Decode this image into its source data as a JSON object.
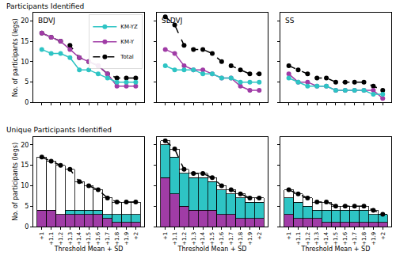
{
  "chart_data": [
    {
      "type": "line",
      "title": "Participants Identified",
      "subtitle": "BDVJ",
      "categories": [
        "+1",
        "+1.1",
        "+1.2",
        "+1.3",
        "+1.4",
        "+1.5",
        "+1.6",
        "+1.7",
        "+1.8",
        "+1.9",
        "+2"
      ],
      "series": [
        {
          "name": "Total",
          "color": "#000000",
          "marker": "circle",
          "line_style": "dashed",
          "values": [
            17,
            16,
            15,
            14,
            11,
            10,
            9,
            7,
            6,
            6,
            6
          ]
        },
        {
          "name": "KM-Y",
          "color": "#a03ca6",
          "marker": "circle",
          "line_style": "solid",
          "values": [
            17,
            16,
            15,
            13,
            11,
            10,
            9,
            7,
            4,
            4,
            4
          ]
        },
        {
          "name": "KM-YZ",
          "color": "#2ec4c4",
          "marker": "circle",
          "line_style": "solid",
          "values": [
            13,
            12,
            12,
            11,
            8,
            8,
            7,
            6,
            5,
            5,
            5
          ]
        }
      ],
      "ylabel": "No. of participants (legs)",
      "ylim": [
        0,
        22
      ],
      "yticks": [
        0,
        5,
        10,
        15,
        20
      ],
      "grid": false,
      "legend": "upper right",
      "tick_labels": "y"
    },
    {
      "type": "line",
      "subtitle": "SLDVJ",
      "categories": [
        "+1",
        "+1.1",
        "+1.2",
        "+1.3",
        "+1.4",
        "+1.5",
        "+1.6",
        "+1.7",
        "+1.8",
        "+1.9",
        "+2"
      ],
      "series": [
        {
          "name": "Total",
          "color": "#000000",
          "marker": "circle",
          "line_style": "dashed",
          "values": [
            21,
            19,
            14,
            13,
            13,
            12,
            10,
            9,
            8,
            7,
            7
          ]
        },
        {
          "name": "KM-Y",
          "color": "#a03ca6",
          "marker": "circle",
          "line_style": "solid",
          "values": [
            13,
            12,
            9,
            8,
            8,
            7,
            6,
            6,
            4,
            3,
            3
          ]
        },
        {
          "name": "KM-YZ",
          "color": "#2ec4c4",
          "marker": "circle",
          "line_style": "solid",
          "values": [
            9,
            8,
            8,
            8,
            7,
            7,
            6,
            6,
            5,
            5,
            5
          ]
        }
      ],
      "ylim": [
        0,
        22
      ],
      "yticks": [
        0,
        5,
        10,
        15,
        20
      ],
      "grid": false,
      "tick_labels": false
    },
    {
      "type": "line",
      "subtitle": "SS",
      "categories": [
        "+1",
        "+1.1",
        "+1.2",
        "+1.3",
        "+1.4",
        "+1.5",
        "+1.6",
        "+1.7",
        "+1.8",
        "+1.9",
        "+2"
      ],
      "series": [
        {
          "name": "Total",
          "color": "#000000",
          "marker": "circle",
          "line_style": "dashed",
          "values": [
            9,
            8,
            7,
            6,
            6,
            5,
            5,
            5,
            5,
            4,
            3
          ]
        },
        {
          "name": "KM-Y",
          "color": "#a03ca6",
          "marker": "circle",
          "line_style": "solid",
          "values": [
            7,
            5,
            5,
            4,
            4,
            3,
            3,
            3,
            3,
            3,
            1
          ]
        },
        {
          "name": "KM-YZ",
          "color": "#2ec4c4",
          "marker": "circle",
          "line_style": "solid",
          "values": [
            6,
            5,
            4,
            4,
            4,
            3,
            3,
            3,
            3,
            2,
            2
          ]
        }
      ],
      "ylim": [
        0,
        22
      ],
      "yticks": [
        0,
        5,
        10,
        15,
        20
      ],
      "grid": false,
      "tick_labels": false
    },
    {
      "type": "bar",
      "title": "Unique Participants Identified",
      "stacked": true,
      "categories": [
        "+1",
        "+1.1",
        "+1.2",
        "+1.3",
        "+1.4",
        "+1.5",
        "+1.6",
        "+1.7",
        "+1.8",
        "+1.9",
        "+2"
      ],
      "series": [
        {
          "name": "KM-Y",
          "color": "#a03ca6",
          "values": [
            4,
            4,
            3,
            3,
            3,
            3,
            3,
            2,
            1,
            1,
            1
          ]
        },
        {
          "name": "KM-YZ",
          "color": "#2ec4c4",
          "values": [
            0,
            0,
            0,
            1,
            1,
            1,
            1,
            1,
            2,
            2,
            2
          ]
        },
        {
          "color": "#ffffff",
          "values": [
            13,
            12,
            12,
            10,
            7,
            6,
            5,
            4,
            3,
            3,
            3
          ]
        },
        {
          "name": "Total",
          "type": "line",
          "color": "#000000",
          "marker": "circle",
          "line_style": "dashed",
          "values": [
            17,
            16,
            15,
            14,
            11,
            10,
            9,
            7,
            6,
            6,
            6
          ]
        }
      ],
      "xlabel": "Threshold Mean + SD",
      "ylabel": "No. of participants (legs)",
      "ylim": [
        0,
        22
      ],
      "yticks": [
        0,
        5,
        10,
        15,
        20
      ],
      "grid": false,
      "tick_labels": true
    },
    {
      "type": "bar",
      "stacked": true,
      "categories": [
        "+1",
        "+1.1",
        "+1.2",
        "+1.3",
        "+1.4",
        "+1.5",
        "+1.6",
        "+1.7",
        "+1.8",
        "+1.9",
        "+2"
      ],
      "series": [
        {
          "name": "KM-Y",
          "color": "#a03ca6",
          "values": [
            12,
            8,
            5,
            4,
            4,
            4,
            3,
            3,
            2,
            2,
            2
          ]
        },
        {
          "name": "KM-YZ",
          "color": "#2ec4c4",
          "values": [
            8,
            9,
            8,
            8,
            8,
            7,
            6,
            5,
            5,
            4,
            4
          ]
        },
        {
          "color": "#ffffff",
          "values": [
            1,
            2,
            1,
            1,
            1,
            1,
            1,
            1,
            1,
            1,
            1
          ]
        },
        {
          "name": "Total",
          "type": "line",
          "color": "#000000",
          "marker": "circle",
          "line_style": "dashed",
          "values": [
            21,
            19,
            14,
            13,
            13,
            12,
            10,
            9,
            8,
            7,
            7
          ]
        }
      ],
      "xlabel": "Threshold Mean + SD",
      "ylim": [
        0,
        22
      ],
      "yticks": [
        0,
        5,
        10,
        15,
        20
      ],
      "grid": false,
      "tick_labels": "x"
    },
    {
      "type": "bar",
      "stacked": true,
      "categories": [
        "+1",
        "+1.1",
        "+1.2",
        "+1.3",
        "+1.4",
        "+1.5",
        "+1.6",
        "+1.7",
        "+1.8",
        "+1.9",
        "+2"
      ],
      "series": [
        {
          "name": "KM-Y",
          "color": "#a03ca6",
          "values": [
            3,
            2,
            2,
            2,
            1,
            1,
            1,
            1,
            1,
            1,
            1
          ]
        },
        {
          "name": "KM-YZ",
          "color": "#2ec4c4",
          "values": [
            4,
            4,
            3,
            2,
            3,
            3,
            3,
            3,
            3,
            2,
            2
          ]
        },
        {
          "color": "#ffffff",
          "values": [
            2,
            2,
            2,
            2,
            2,
            1,
            1,
            1,
            1,
            1,
            0
          ]
        },
        {
          "name": "Total",
          "type": "line",
          "color": "#000000",
          "marker": "circle",
          "line_style": "dashed",
          "values": [
            9,
            8,
            7,
            6,
            6,
            5,
            5,
            5,
            5,
            4,
            3
          ]
        }
      ],
      "xlabel": "Threshold Mean + SD",
      "ylim": [
        0,
        22
      ],
      "yticks": [
        0,
        5,
        10,
        15,
        20
      ],
      "grid": false,
      "tick_labels": "x"
    }
  ]
}
